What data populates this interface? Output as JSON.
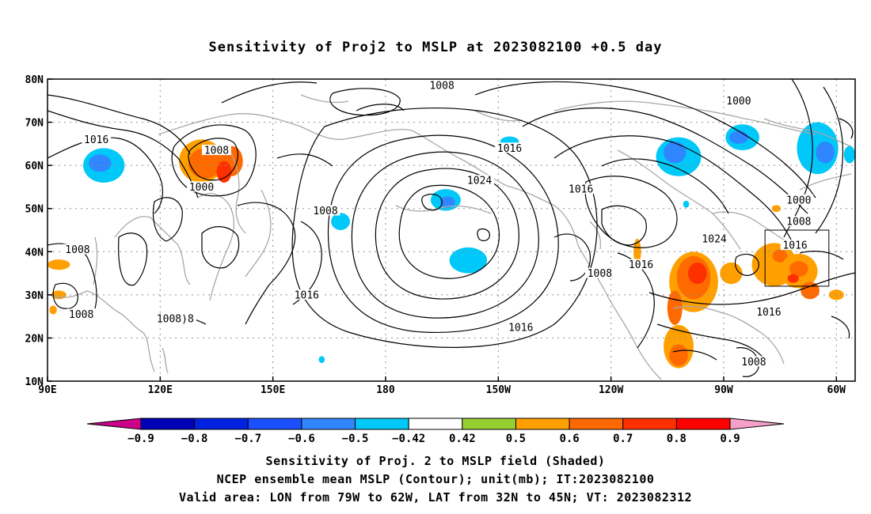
{
  "chart_data": {
    "type": "contour map",
    "title": "Sensitivity of Proj2 to MSLP at 2023082100 +0.5 day",
    "captions": [
      "Sensitivity of Proj. 2 to MSLP field (Shaded)",
      "NCEP ensemble mean MSLP (Contour); unit(mb); IT:2023082100",
      "Valid area: LON from 79W to 62W, LAT from 32N to 45N; VT: 2023082312"
    ],
    "lon_range": [
      90,
      305
    ],
    "lat_range": [
      10,
      80
    ],
    "grid": true,
    "lon_ticks": [
      {
        "lon": 90,
        "label": "90E"
      },
      {
        "lon": 120,
        "label": "120E"
      },
      {
        "lon": 150,
        "label": "150E"
      },
      {
        "lon": 180,
        "label": "180"
      },
      {
        "lon": 210,
        "label": "150W"
      },
      {
        "lon": 240,
        "label": "120W"
      },
      {
        "lon": 270,
        "label": "90W"
      },
      {
        "lon": 300,
        "label": "60W"
      }
    ],
    "lat_ticks": [
      {
        "lat": 10,
        "label": "10N"
      },
      {
        "lat": 20,
        "label": "20N"
      },
      {
        "lat": 30,
        "label": "30N"
      },
      {
        "lat": 40,
        "label": "40N"
      },
      {
        "lat": 50,
        "label": "50N"
      },
      {
        "lat": 60,
        "label": "60N"
      },
      {
        "lat": 70,
        "label": "70N"
      },
      {
        "lat": 80,
        "label": "80N"
      }
    ],
    "valid_area": {
      "lon": [
        281,
        298
      ],
      "lat": [
        32,
        45
      ]
    },
    "colorbar": {
      "boundaries": [
        "-0.9",
        "-0.8",
        "-0.7",
        "-0.6",
        "-0.5",
        "-0.42",
        "0.42",
        "0.5",
        "0.6",
        "0.7",
        "0.8",
        "0.9"
      ],
      "colors": [
        "#cc0088",
        "#0000b8",
        "#0022e0",
        "#1a50ff",
        "#2f86ff",
        "#00c8f8",
        "#ffffff",
        "#96d030",
        "#ffa000",
        "#ff6a00",
        "#ff3000",
        "#ff0000",
        "#f4a0c8"
      ]
    },
    "contour_labels": [
      {
        "text": "1008",
        "lon": 195,
        "lat": 78.5
      },
      {
        "text": "1000",
        "lon": 274,
        "lat": 75
      },
      {
        "text": "1016",
        "lon": 103,
        "lat": 66
      },
      {
        "text": "1008",
        "lon": 135,
        "lat": 63.5
      },
      {
        "text": "1000",
        "lon": 131,
        "lat": 55
      },
      {
        "text": "1016",
        "lon": 213,
        "lat": 64
      },
      {
        "text": "1024",
        "lon": 205,
        "lat": 56.5
      },
      {
        "text": "1016",
        "lon": 232,
        "lat": 54.5
      },
      {
        "text": "1000",
        "lon": 290,
        "lat": 52
      },
      {
        "text": "1008",
        "lon": 164,
        "lat": 49.5
      },
      {
        "text": "1008",
        "lon": 290,
        "lat": 47
      },
      {
        "text": "1024",
        "lon": 267.5,
        "lat": 43
      },
      {
        "text": "1016",
        "lon": 289,
        "lat": 41.5
      },
      {
        "text": "1008",
        "lon": 98,
        "lat": 40.5
      },
      {
        "text": "1016",
        "lon": 248,
        "lat": 37
      },
      {
        "text": "1008",
        "lon": 237,
        "lat": 35
      },
      {
        "text": "1016",
        "lon": 159,
        "lat": 30
      },
      {
        "text": "1016",
        "lon": 282,
        "lat": 26
      },
      {
        "text": "1008",
        "lon": 99,
        "lat": 25.5
      },
      {
        "text": "1008)8",
        "lon": 124,
        "lat": 24.5
      },
      {
        "text": "1016",
        "lon": 216,
        "lat": 22.5
      },
      {
        "text": "1008",
        "lon": 278,
        "lat": 14.5
      }
    ],
    "sensitivity_blobs": [
      {
        "lon": 105,
        "lat": 60,
        "rx": 5.5,
        "ry": 4,
        "level": "-0.5"
      },
      {
        "lon": 104,
        "lat": 60.5,
        "rx": 3,
        "ry": 2,
        "level": "-0.6"
      },
      {
        "lon": 131,
        "lat": 61,
        "rx": 6,
        "ry": 5,
        "level": "0.5"
      },
      {
        "lon": 132,
        "lat": 60.5,
        "rx": 4.5,
        "ry": 3.5,
        "level": "0.6"
      },
      {
        "lon": 139,
        "lat": 61,
        "rx": 3,
        "ry": 3.5,
        "level": "0.6"
      },
      {
        "lon": 137,
        "lat": 58.5,
        "rx": 2,
        "ry": 2.5,
        "level": "0.7"
      },
      {
        "lon": 168,
        "lat": 47,
        "rx": 2.5,
        "ry": 2,
        "level": "-0.5"
      },
      {
        "lon": 196,
        "lat": 52,
        "rx": 4,
        "ry": 2.5,
        "level": "-0.5"
      },
      {
        "lon": 196.5,
        "lat": 51.5,
        "rx": 2,
        "ry": 1.3,
        "level": "-0.6"
      },
      {
        "lon": 202,
        "lat": 38,
        "rx": 5,
        "ry": 3,
        "level": "-0.5"
      },
      {
        "lon": 213,
        "lat": 65.5,
        "rx": 2.5,
        "ry": 1.2,
        "level": "-0.5"
      },
      {
        "lon": 258,
        "lat": 62,
        "rx": 6,
        "ry": 4.5,
        "level": "-0.5"
      },
      {
        "lon": 257,
        "lat": 63,
        "rx": 3,
        "ry": 2.5,
        "level": "-0.6"
      },
      {
        "lon": 275,
        "lat": 66.5,
        "rx": 4.5,
        "ry": 3,
        "level": "-0.5"
      },
      {
        "lon": 274,
        "lat": 66.5,
        "rx": 2.5,
        "ry": 1.5,
        "level": "-0.6"
      },
      {
        "lon": 295,
        "lat": 64,
        "rx": 5.5,
        "ry": 6,
        "level": "-0.5"
      },
      {
        "lon": 297,
        "lat": 63,
        "rx": 2.5,
        "ry": 2.5,
        "level": "-0.6"
      },
      {
        "lon": 303.5,
        "lat": 62.5,
        "rx": 1.5,
        "ry": 2,
        "level": "-0.5"
      },
      {
        "lon": 262,
        "lat": 33,
        "rx": 6.5,
        "ry": 7,
        "level": "0.5"
      },
      {
        "lon": 262,
        "lat": 34,
        "rx": 4.5,
        "ry": 5,
        "level": "0.6"
      },
      {
        "lon": 263,
        "lat": 35,
        "rx": 2.5,
        "ry": 2.5,
        "level": "0.7"
      },
      {
        "lon": 257,
        "lat": 27,
        "rx": 2,
        "ry": 4,
        "level": "0.6"
      },
      {
        "lon": 258,
        "lat": 18,
        "rx": 4,
        "ry": 5,
        "level": "0.5"
      },
      {
        "lon": 258,
        "lat": 16,
        "rx": 2.5,
        "ry": 2.5,
        "level": "0.6"
      },
      {
        "lon": 272,
        "lat": 35,
        "rx": 3,
        "ry": 2.5,
        "level": "0.5"
      },
      {
        "lon": 283.5,
        "lat": 37,
        "rx": 6,
        "ry": 5,
        "level": "0.5"
      },
      {
        "lon": 285,
        "lat": 39,
        "rx": 2,
        "ry": 1.5,
        "level": "0.6"
      },
      {
        "lon": 290,
        "lat": 35.5,
        "rx": 5,
        "ry": 4,
        "level": "0.5"
      },
      {
        "lon": 290,
        "lat": 36,
        "rx": 2.5,
        "ry": 1.8,
        "level": "0.6"
      },
      {
        "lon": 293,
        "lat": 31,
        "rx": 2.5,
        "ry": 2,
        "level": "0.6"
      },
      {
        "lon": 93,
        "lat": 37,
        "rx": 3,
        "ry": 1.2,
        "level": "0.5"
      },
      {
        "lon": 93,
        "lat": 30,
        "rx": 2,
        "ry": 1,
        "level": "0.5"
      },
      {
        "lon": 91.5,
        "lat": 26.5,
        "rx": 1,
        "ry": 1,
        "level": "0.5"
      },
      {
        "lon": 247,
        "lat": 40,
        "rx": 1,
        "ry": 3,
        "level": "0.5"
      },
      {
        "lon": 260,
        "lat": 51,
        "rx": 0.8,
        "ry": 0.8,
        "level": "-0.5"
      },
      {
        "lon": 284,
        "lat": 50,
        "rx": 1.2,
        "ry": 0.8,
        "level": "0.5"
      },
      {
        "lon": 163,
        "lat": 15,
        "rx": 0.8,
        "ry": 0.8,
        "level": "-0.5"
      },
      {
        "lon": 288.5,
        "lat": 33.8,
        "rx": 1.5,
        "ry": 1,
        "level": "0.7"
      },
      {
        "lon": 300,
        "lat": 30,
        "rx": 2,
        "ry": 1.2,
        "level": "0.5"
      }
    ]
  }
}
